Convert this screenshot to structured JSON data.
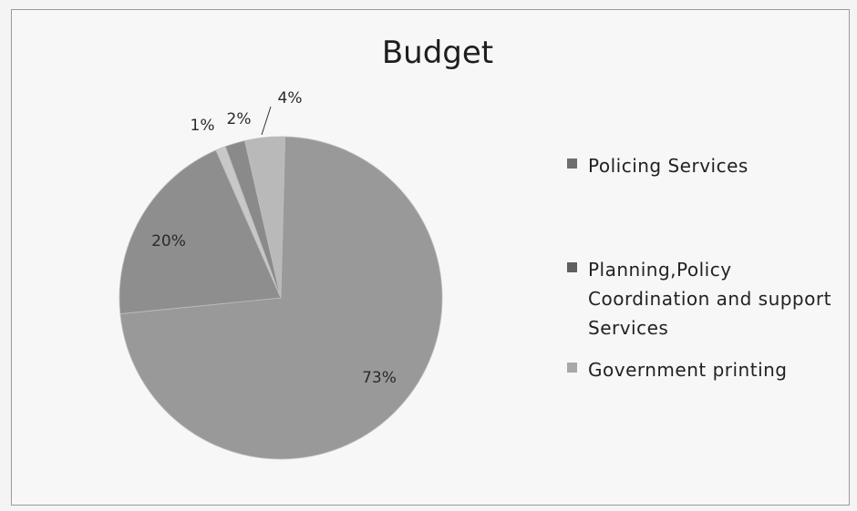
{
  "chart_data": {
    "type": "pie",
    "title": "Budget",
    "categories": [
      "Policing Services",
      "Planning,Policy Coordination and support Services",
      "Government printing",
      "",
      ""
    ],
    "values": [
      73,
      20,
      1,
      2,
      4
    ],
    "data_labels": [
      "73%",
      "20%",
      "1%",
      "2%",
      "4%"
    ],
    "colors": [
      "#999999",
      "#8e8e8e",
      "#c8c8c8",
      "#8a8a8a",
      "#b9b9b9"
    ],
    "legend_position": "right"
  }
}
